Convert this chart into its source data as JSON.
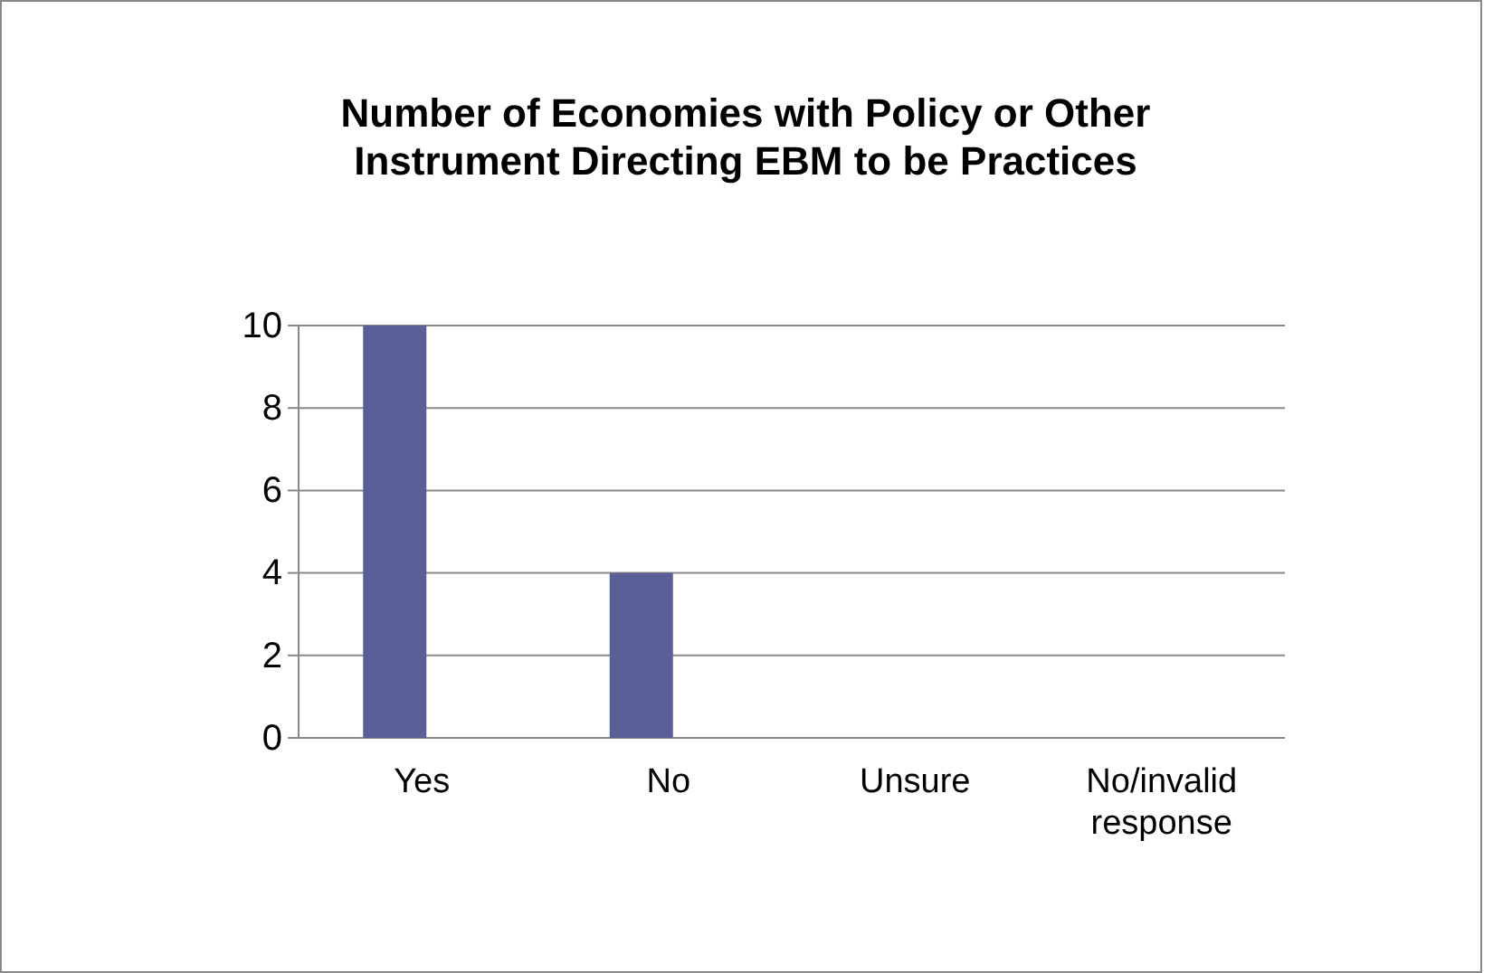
{
  "chart_data": {
    "type": "bar",
    "title": "Number of Economies with Policy or Other Instrument Directing EBM to be Practices",
    "categories": [
      "Yes",
      "No",
      "Unsure",
      "No/invalid response"
    ],
    "values": [
      10,
      4,
      0,
      0
    ],
    "color": "#5b5f98",
    "ylim": [
      0,
      10
    ],
    "yticks": [
      0,
      2,
      4,
      6,
      8,
      10
    ],
    "grid": "y"
  }
}
